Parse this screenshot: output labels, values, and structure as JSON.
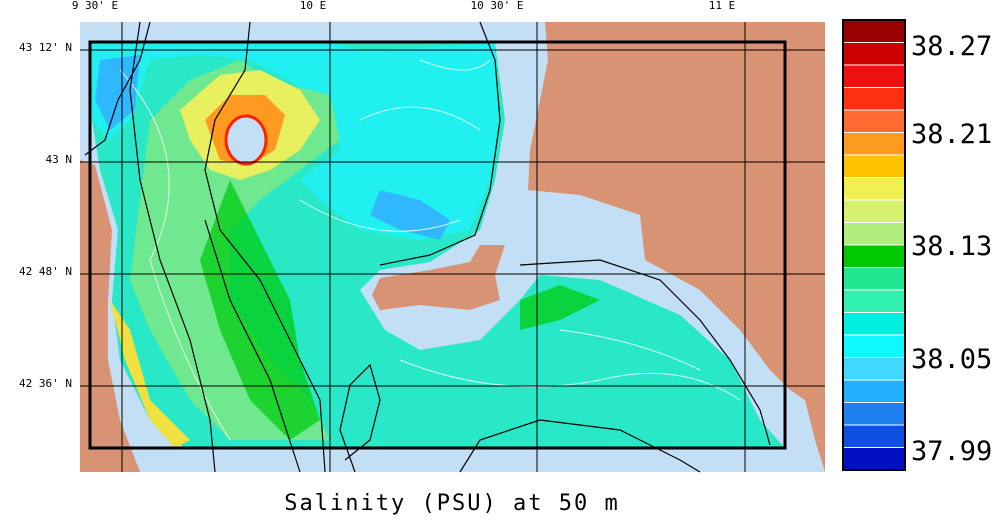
{
  "title": "Salinity (PSU) at 50 m",
  "longitude_labels": [
    "9 30' E",
    "10 E",
    "10 30' E",
    "11 E"
  ],
  "latitude_labels": [
    "43 12' N",
    "43 N",
    "42 48' N",
    "42 36' N"
  ],
  "colorbar": {
    "labels": [
      "38.27",
      "38.21",
      "38.13",
      "38.05",
      "37.99"
    ],
    "colors": [
      "#990000",
      "#cc0000",
      "#ee1010",
      "#ff3010",
      "#ff6a30",
      "#ff9a20",
      "#ffc000",
      "#f0f050",
      "#d8f070",
      "#b0ee80",
      "#00c800",
      "#20e890",
      "#30f0b0",
      "#00f0e0",
      "#10f8ff",
      "#40d8ff",
      "#20b0ff",
      "#2080f0",
      "#1050e0",
      "#0010c0"
    ]
  }
}
